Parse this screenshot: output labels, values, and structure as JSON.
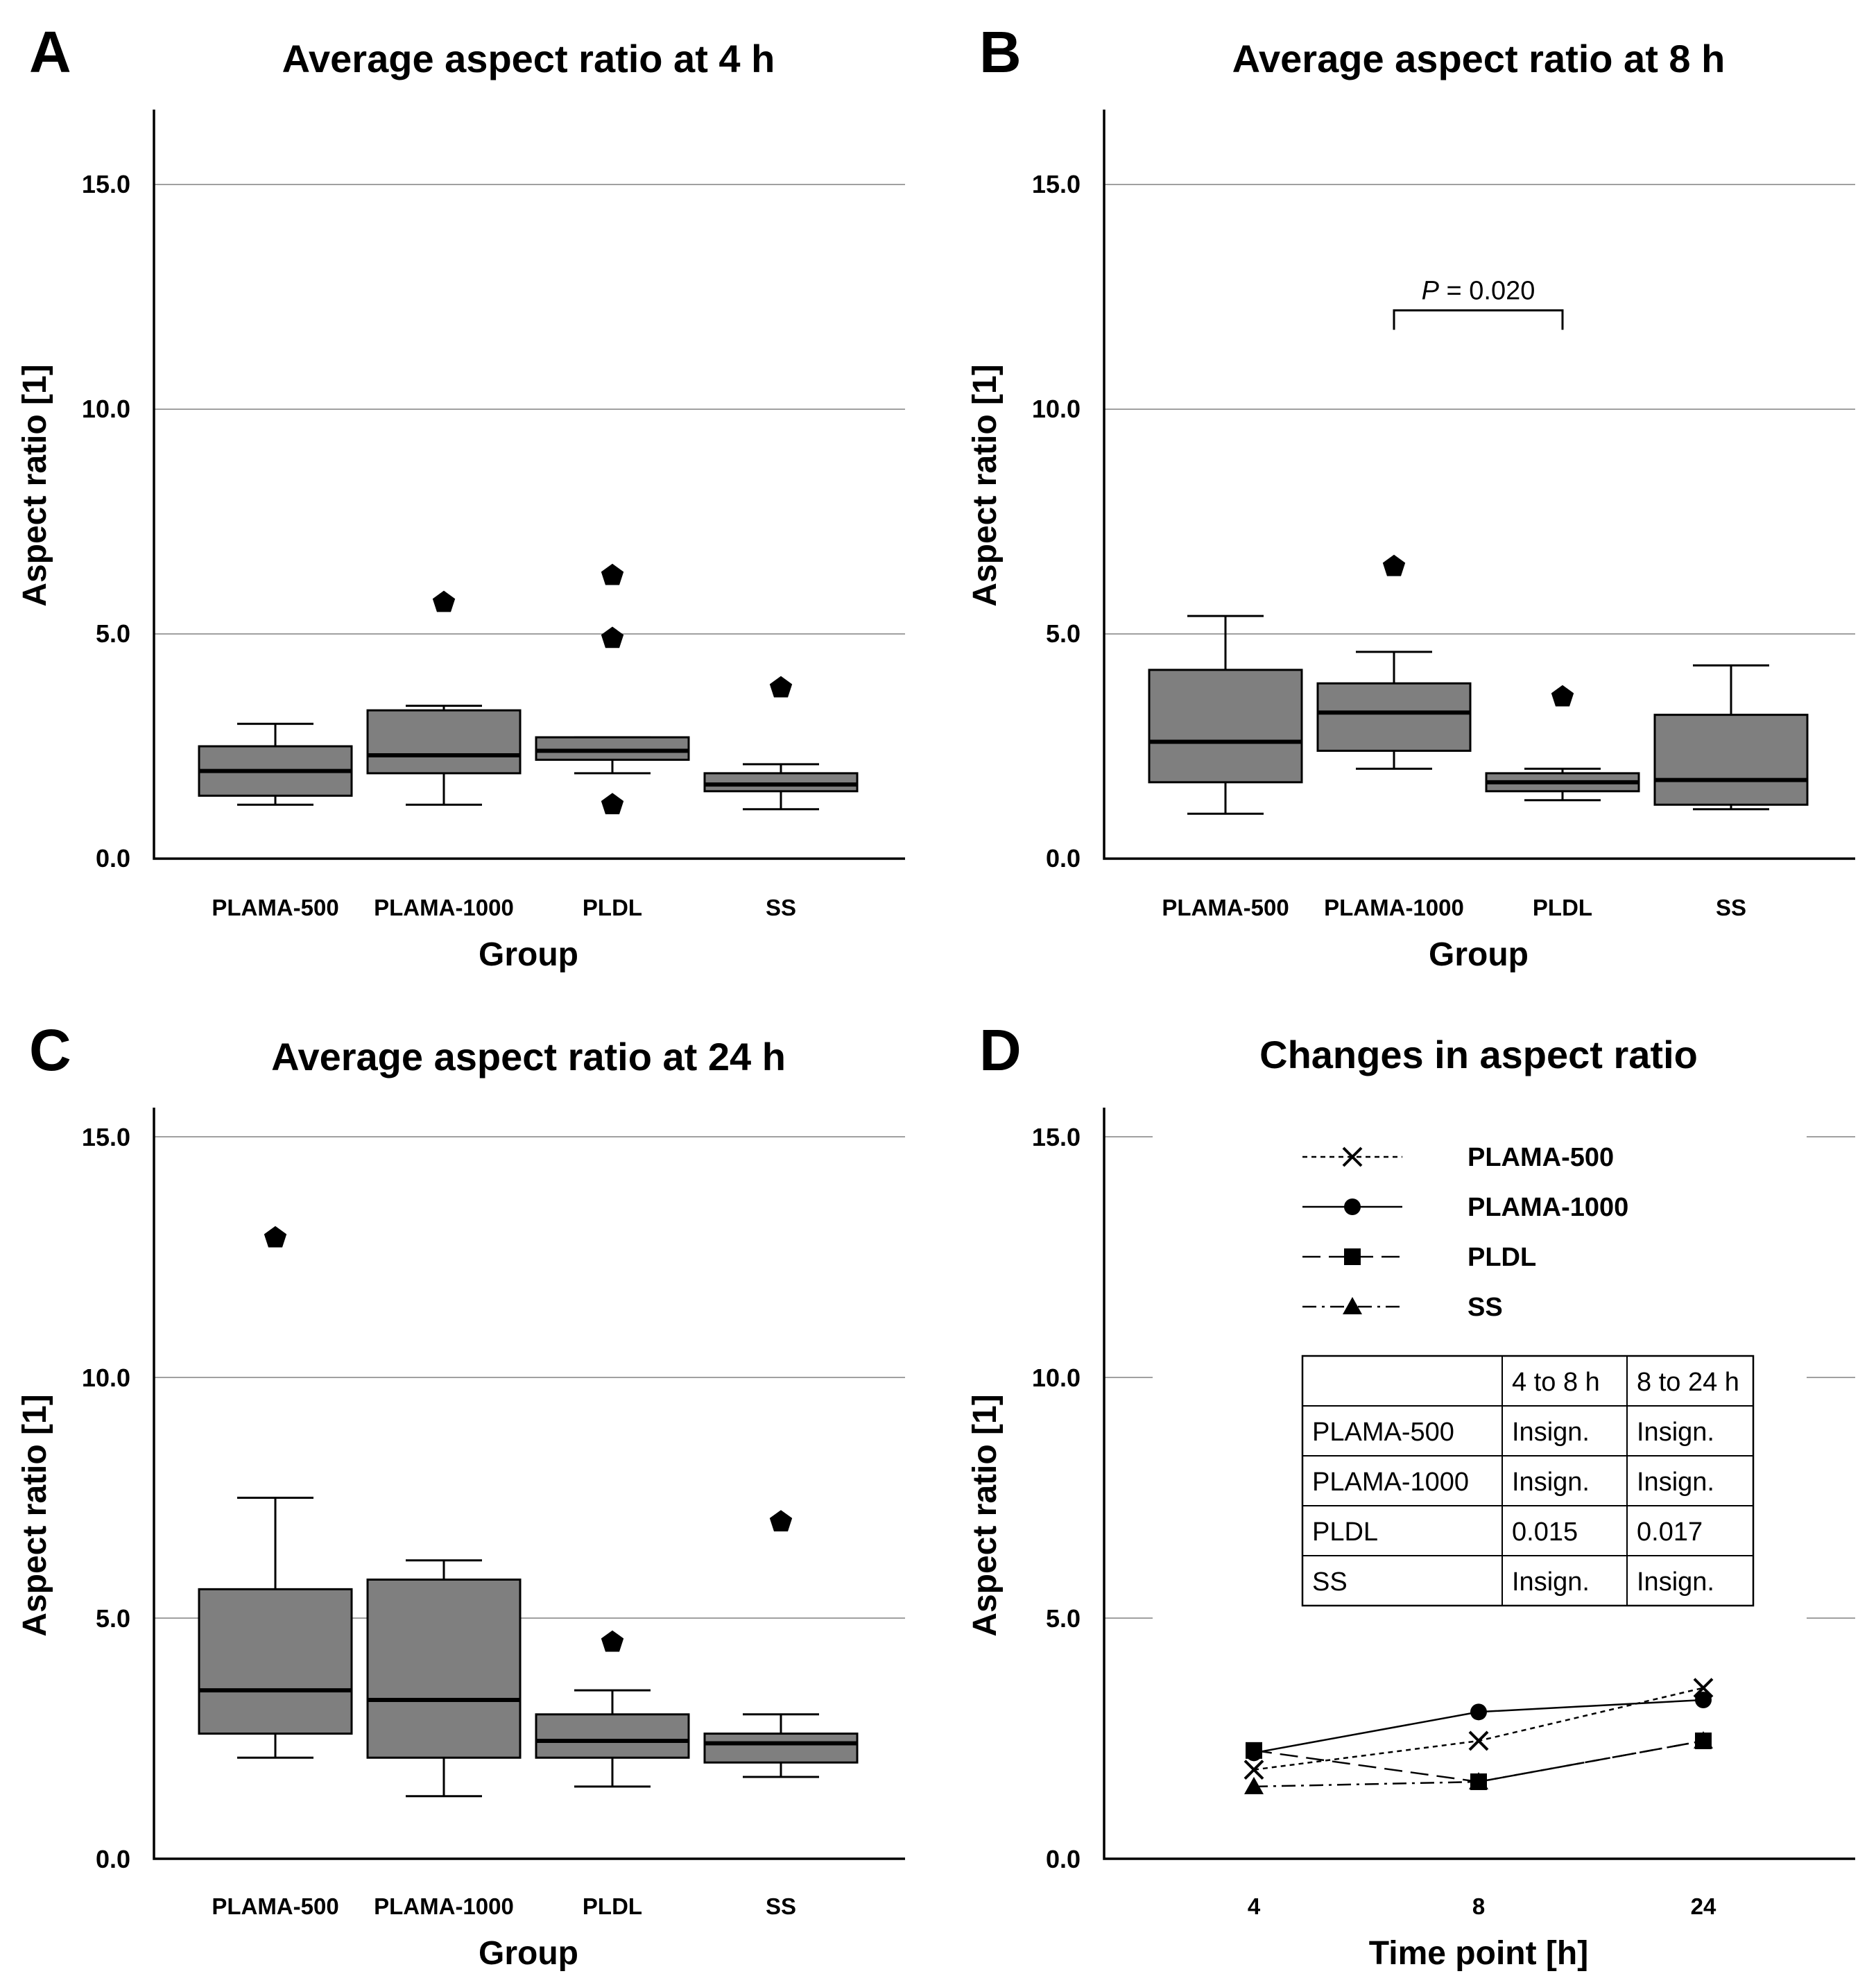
{
  "figure": {
    "colors": {
      "box_fill": "#7f7f7f",
      "grid": "#a0a0a0",
      "ink": "#000000"
    },
    "panels": [
      {
        "letter": "A",
        "title": "Average aspect ratio at 4 h"
      },
      {
        "letter": "B",
        "title": "Average aspect ratio at 8 h"
      },
      {
        "letter": "C",
        "title": "Average aspect ratio at 24 h"
      },
      {
        "letter": "D",
        "title": "Changes in aspect ratio"
      }
    ],
    "y_tick_labels": [
      "0.0",
      "5.0",
      "10.0",
      "15.0"
    ]
  },
  "chart_data": [
    {
      "type": "box",
      "title": "Average aspect ratio at 4 h",
      "xlabel": "Group",
      "ylabel": "Aspect ratio [1]",
      "ylim": [
        0,
        16.6
      ],
      "gridlines": [
        5,
        10,
        15
      ],
      "categories": [
        "PLAMA-500",
        "PLAMA-1000",
        "PLDL",
        "SS"
      ],
      "boxes": [
        {
          "min": 1.2,
          "q1": 1.4,
          "median": 1.95,
          "q3": 2.5,
          "max": 3.0,
          "outliers": []
        },
        {
          "min": 1.2,
          "q1": 1.9,
          "median": 2.3,
          "q3": 3.3,
          "max": 3.4,
          "outliers": [
            5.7
          ]
        },
        {
          "min": 1.9,
          "q1": 2.2,
          "median": 2.4,
          "q3": 2.7,
          "max": 2.7,
          "outliers": [
            6.3,
            4.9,
            1.2
          ]
        },
        {
          "min": 1.1,
          "q1": 1.5,
          "median": 1.65,
          "q3": 1.9,
          "max": 2.1,
          "outliers": [
            3.8
          ]
        }
      ]
    },
    {
      "type": "box",
      "title": "Average aspect ratio at 8 h",
      "xlabel": "Group",
      "ylabel": "Aspect ratio [1]",
      "ylim": [
        0,
        16.6
      ],
      "gridlines": [
        5,
        10,
        15
      ],
      "categories": [
        "PLAMA-500",
        "PLAMA-1000",
        "PLDL",
        "SS"
      ],
      "boxes": [
        {
          "min": 1.0,
          "q1": 1.7,
          "median": 2.6,
          "q3": 4.2,
          "max": 5.4,
          "outliers": []
        },
        {
          "min": 2.0,
          "q1": 2.4,
          "median": 3.25,
          "q3": 3.9,
          "max": 4.6,
          "outliers": [
            6.5
          ]
        },
        {
          "min": 1.3,
          "q1": 1.5,
          "median": 1.7,
          "q3": 1.9,
          "max": 2.0,
          "outliers": [
            3.6
          ]
        },
        {
          "min": 1.1,
          "q1": 1.2,
          "median": 1.75,
          "q3": 3.2,
          "max": 4.3,
          "outliers": []
        }
      ],
      "annotation": {
        "p_symbol": "P",
        "p_rest": " = 0.020",
        "between": [
          "PLAMA-1000",
          "PLDL"
        ],
        "bracket_y": 12.2
      }
    },
    {
      "type": "box",
      "title": "Average aspect ratio at 24 h",
      "xlabel": "Group",
      "ylabel": "Aspect ratio [1]",
      "ylim": [
        0,
        15.5
      ],
      "gridlines": [
        5,
        10,
        15
      ],
      "categories": [
        "PLAMA-500",
        "PLAMA-1000",
        "PLDL",
        "SS"
      ],
      "boxes": [
        {
          "min": 2.1,
          "q1": 2.6,
          "median": 3.5,
          "q3": 5.6,
          "max": 7.5,
          "outliers": [
            12.9
          ]
        },
        {
          "min": 1.3,
          "q1": 2.1,
          "median": 3.3,
          "q3": 5.8,
          "max": 6.2,
          "outliers": []
        },
        {
          "min": 1.5,
          "q1": 2.1,
          "median": 2.45,
          "q3": 3.0,
          "max": 3.5,
          "outliers": [
            4.5
          ]
        },
        {
          "min": 1.7,
          "q1": 2.0,
          "median": 2.4,
          "q3": 2.6,
          "max": 3.0,
          "outliers": [
            7.0
          ]
        }
      ]
    },
    {
      "type": "line",
      "title": "Changes in aspect ratio",
      "xlabel": "Time point [h]",
      "ylabel": "Aspect ratio [1]",
      "ylim": [
        0,
        15.5
      ],
      "gridlines": [
        5,
        10,
        15
      ],
      "x": [
        "4",
        "8",
        "24"
      ],
      "series": [
        {
          "name": "PLAMA-500",
          "marker": "cross",
          "dash": "short",
          "values": [
            1.85,
            2.45,
            3.55
          ]
        },
        {
          "name": "PLAMA-1000",
          "marker": "circle",
          "dash": "solid",
          "values": [
            2.2,
            3.05,
            3.3
          ]
        },
        {
          "name": "PLDL",
          "marker": "square",
          "dash": "long",
          "values": [
            2.25,
            1.6,
            2.45
          ]
        },
        {
          "name": "SS",
          "marker": "triangle",
          "dash": "dashdot",
          "values": [
            1.5,
            1.6,
            2.45
          ]
        }
      ],
      "table": {
        "headers": [
          "",
          "4 to 8 h",
          "8 to 24 h"
        ],
        "rows": [
          [
            "PLAMA-500",
            "Insign.",
            "Insign."
          ],
          [
            "PLAMA-1000",
            "Insign.",
            "Insign."
          ],
          [
            "PLDL",
            "0.015",
            "0.017"
          ],
          [
            "SS",
            "Insign.",
            "Insign."
          ]
        ]
      }
    }
  ]
}
